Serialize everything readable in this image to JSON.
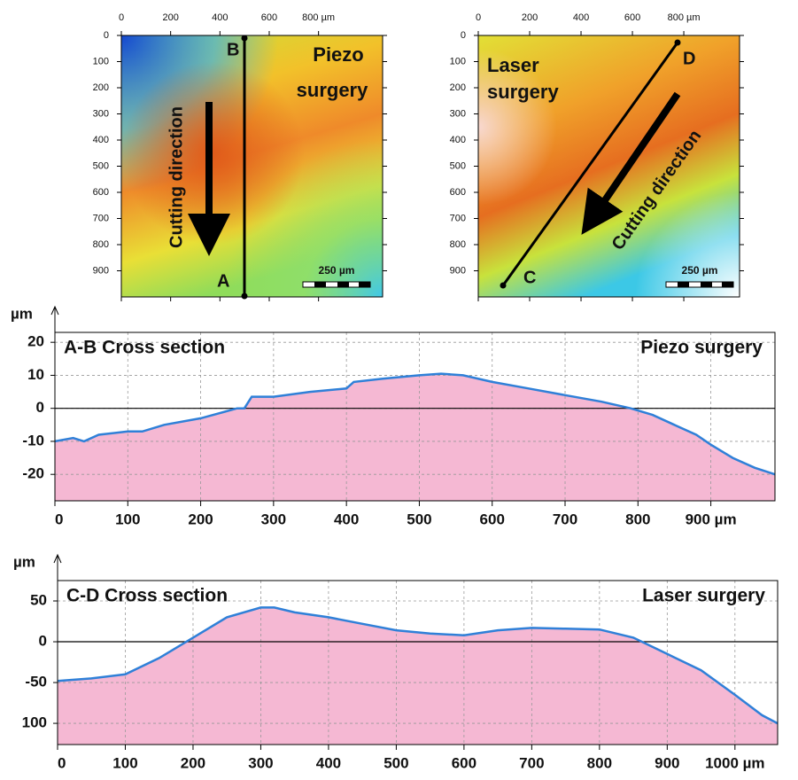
{
  "chart_data": [
    {
      "type": "image",
      "xlim": [
        0,
        1060
      ],
      "ylim": [
        0,
        1000
      ],
      "xticks": [
        0,
        200,
        400,
        600,
        {
          "value": 800,
          "label": "800 µm"
        }
      ],
      "yticks": [
        0,
        100,
        200,
        300,
        400,
        500,
        600,
        700,
        800,
        900
      ],
      "annotations": {
        "start": "A",
        "end": "B",
        "label": [
          "Piezo",
          "surgery"
        ],
        "direction": "Cutting direction",
        "scale": "250 µm"
      }
    },
    {
      "type": "image",
      "xlim": [
        0,
        1017
      ],
      "ylim": [
        0,
        1000
      ],
      "xticks": [
        0,
        200,
        400,
        600,
        {
          "value": 800,
          "label": "800 µm"
        }
      ],
      "yticks": [
        0,
        100,
        200,
        300,
        400,
        500,
        600,
        700,
        800,
        900
      ],
      "annotations": {
        "start": "C",
        "end": "D",
        "label": [
          "Laser",
          "surgery"
        ],
        "direction": "Cutting direction",
        "scale": "250 µm"
      }
    },
    {
      "type": "line",
      "title": "A-B Cross section",
      "annotation": "Piezo surgery",
      "y_label": "µm",
      "xlim": [
        0,
        988
      ],
      "ylim": [
        -28,
        23
      ],
      "xticks": [
        0,
        100,
        200,
        300,
        400,
        500,
        600,
        700,
        800,
        {
          "value": 900,
          "label": "900 µm"
        }
      ],
      "yticks": [
        20,
        10,
        0,
        -10,
        -20
      ],
      "grid": true,
      "zero_line": true,
      "x": [
        0,
        25,
        40,
        60,
        100,
        120,
        150,
        200,
        250,
        260,
        270,
        300,
        350,
        400,
        410,
        450,
        500,
        530,
        560,
        600,
        650,
        700,
        750,
        790,
        820,
        850,
        880,
        900,
        930,
        960,
        988
      ],
      "series": [
        {
          "color": "#2f80d8",
          "fill": "#f5b8d3",
          "values": [
            -10,
            -9,
            -10,
            -8,
            -7,
            -7,
            -5,
            -3,
            0,
            0,
            3.5,
            3.5,
            5,
            6,
            8,
            9,
            10,
            10.5,
            10,
            8,
            6,
            4,
            2,
            0,
            -2,
            -5,
            -8,
            -11,
            -15,
            -18,
            -20
          ]
        }
      ]
    },
    {
      "type": "line",
      "title": "C-D Cross section",
      "annotation": "Laser surgery",
      "y_label": "µm",
      "xlim": [
        0,
        1063
      ],
      "ylim": [
        -126,
        75
      ],
      "xticks": [
        0,
        100,
        200,
        300,
        400,
        500,
        600,
        700,
        800,
        900,
        {
          "value": 1000,
          "label": "1000 µm"
        }
      ],
      "yticks": [
        50,
        0,
        -50,
        {
          "value": -100,
          "label": "100"
        }
      ],
      "grid": true,
      "zero_line": true,
      "x": [
        0,
        50,
        100,
        150,
        200,
        250,
        300,
        320,
        350,
        400,
        450,
        500,
        550,
        600,
        650,
        700,
        750,
        800,
        850,
        900,
        950,
        1000,
        1040,
        1063
      ],
      "series": [
        {
          "color": "#2f80d8",
          "fill": "#f5b8d3",
          "values": [
            -48,
            -45,
            -40,
            -20,
            5,
            30,
            42,
            42,
            36,
            30,
            22,
            14,
            10,
            8,
            14,
            17,
            16,
            15,
            5,
            -15,
            -35,
            -65,
            -90,
            -100
          ]
        }
      ]
    }
  ]
}
